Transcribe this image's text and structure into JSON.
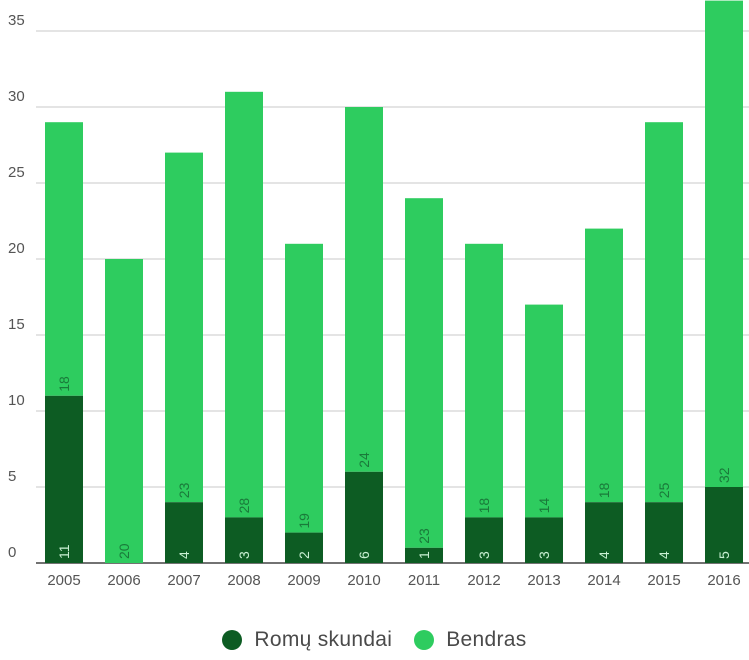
{
  "chart_data": {
    "type": "bar",
    "stacked": true,
    "categories": [
      "2005",
      "2006",
      "2007",
      "2008",
      "2009",
      "2010",
      "2011",
      "2012",
      "2013",
      "2014",
      "2015",
      "2016"
    ],
    "series": [
      {
        "name": "Romų skundai",
        "color": "#0d5c23",
        "values": [
          11,
          0,
          4,
          3,
          2,
          6,
          1,
          3,
          3,
          4,
          4,
          5
        ]
      },
      {
        "name": "Bendras",
        "color": "#2ecc5f",
        "values": [
          18,
          20,
          23,
          28,
          19,
          24,
          23,
          18,
          14,
          18,
          25,
          32
        ]
      }
    ],
    "segment_labels": {
      "Romų skundai": [
        "11",
        "",
        "4",
        "3",
        "2",
        "6",
        "1",
        "3",
        "3",
        "4",
        "4",
        "5"
      ],
      "Bendras": [
        "18",
        "20",
        "23",
        "28",
        "19",
        "24",
        "23",
        "18",
        "14",
        "18",
        "25",
        "32"
      ]
    },
    "y_ticks": [
      "0",
      "5",
      "10",
      "15",
      "20",
      "25",
      "30",
      "35"
    ],
    "ylim": [
      0,
      37
    ],
    "grid": true,
    "legend_position": "bottom"
  }
}
